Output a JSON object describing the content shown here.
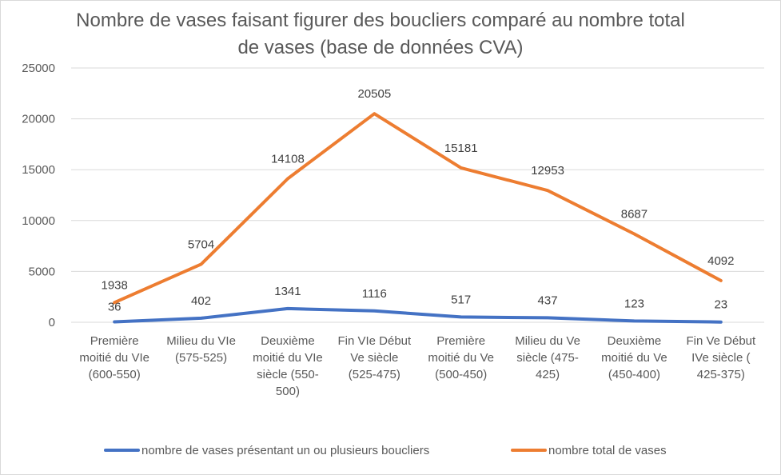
{
  "chart_data": {
    "type": "line",
    "title": "Nombre de vases faisant figurer des boucliers comparé au nombre total de vases (base de données CVA)",
    "categories": [
      [
        "Première",
        "moitié du VIe",
        "(600-550)"
      ],
      [
        "Milieu du VIe",
        "(575-525)"
      ],
      [
        "Deuxième",
        "moitié du VIe",
        "siècle (550-",
        "500)"
      ],
      [
        "Fin VIe Début",
        "Ve siècle",
        "(525-475)"
      ],
      [
        "Première",
        "moitié du Ve",
        "(500-450)"
      ],
      [
        "Milieu du Ve",
        "siècle (475-",
        "425)"
      ],
      [
        "Deuxième",
        "moitié du Ve",
        "(450-400)"
      ],
      [
        "Fin Ve Début",
        "IVe siècle (",
        "425-375)"
      ]
    ],
    "series": [
      {
        "name": "nombre de vases présentant un ou plusieurs boucliers",
        "color": "#4472c4",
        "values": [
          36,
          402,
          1341,
          1116,
          517,
          437,
          123,
          23
        ],
        "labels": [
          "36",
          "402",
          "1341",
          "1116",
          "517",
          "437",
          "123",
          "23"
        ]
      },
      {
        "name": "nombre total de vases",
        "color": "#ed7d31",
        "values": [
          1938,
          5704,
          14108,
          20505,
          15181,
          12953,
          8687,
          4092
        ],
        "labels": [
          "1938",
          "5704",
          "14108",
          "20505",
          "15181",
          "12953",
          "8687",
          "4092"
        ]
      }
    ],
    "ylim": [
      0,
      25000
    ],
    "yticks": [
      0,
      5000,
      10000,
      15000,
      20000,
      25000
    ],
    "ytick_labels": [
      "0",
      "5000",
      "10000",
      "15000",
      "20000",
      "25000"
    ],
    "grid": true,
    "legend_position": "bottom"
  }
}
